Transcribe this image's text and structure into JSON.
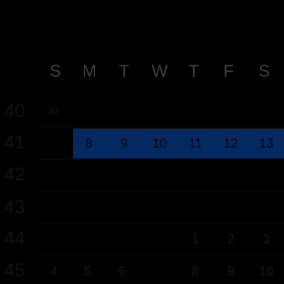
{
  "calendar": {
    "weekday_headers": [
      "S",
      "M",
      "T",
      "W",
      "T",
      "F",
      "S"
    ],
    "week_numbers": [
      "40",
      "41",
      "42",
      "43",
      "44",
      "45"
    ],
    "month_tag": "30",
    "selected_week": {
      "week_number": "41",
      "days": [
        "8",
        "9",
        "10",
        "11",
        "12",
        "13"
      ]
    },
    "week_44_days": [
      "1",
      "2",
      "3"
    ],
    "week_45_days": [
      "4",
      "5",
      "6",
      "8",
      "9",
      "10"
    ],
    "colors": {
      "background": "#000000",
      "selection": "#032960",
      "header_text": "#3f3f42"
    }
  }
}
